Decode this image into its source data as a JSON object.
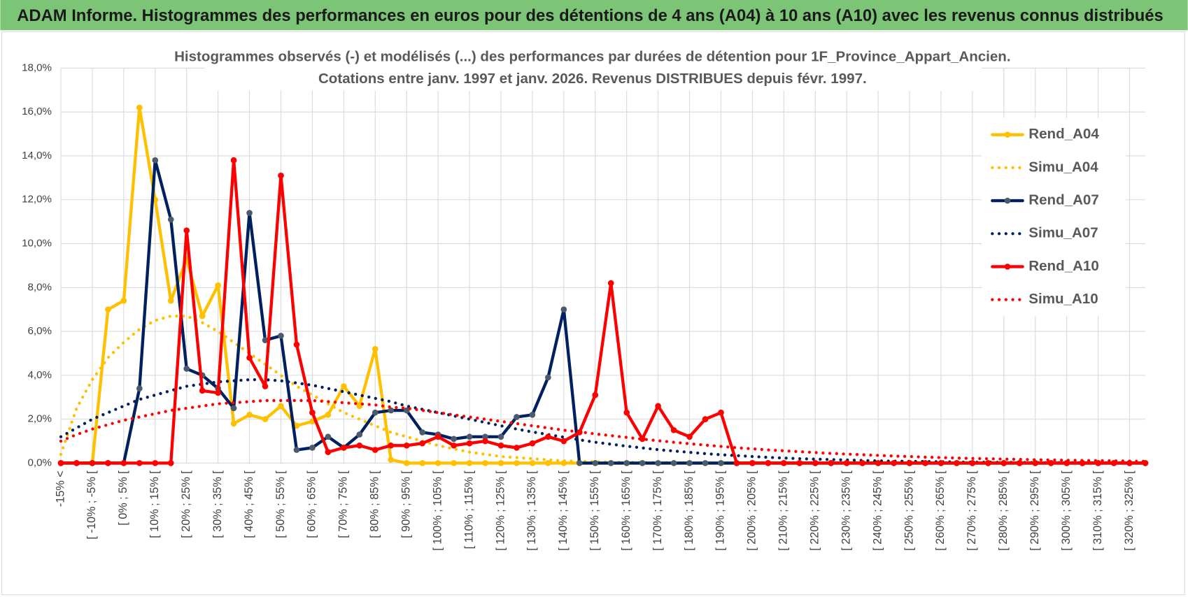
{
  "header": {
    "title": "ADAM Informe. Histogrammes des performances en euros pour des détentions de 4 ans (A04) à 10 ans (A10) avec les revenus connus distribués"
  },
  "chart_data": {
    "type": "line",
    "title": "Histogrammes observés (-) et modélisés (...) des performances par durées de détention pour 1F_Province_Appart_Ancien.",
    "subtitle": "Cotations entre janv. 1997 et janv. 2026. Revenus DISTRIBUES depuis févr. 1997.",
    "categories": [
      "-15% <",
      null,
      "[ -10% ; -5% [",
      null,
      "[ 0% ; 5% [",
      null,
      "[ 10% ; 15% [",
      null,
      "[ 20% ; 25% [",
      null,
      "[ 30% ; 35% [",
      null,
      "[ 40% ; 45% [",
      null,
      "[ 50% ; 55% [",
      null,
      "[ 60% ; 65% [",
      null,
      "[ 70% ; 75% [",
      null,
      "[ 80% ; 85% [",
      null,
      "[ 90% ; 95% [",
      null,
      "[ 100% ; 105% [",
      null,
      "[ 110% ; 115% [",
      null,
      "[ 120% ; 125% [",
      null,
      "[ 130% ; 135% [",
      null,
      "[ 140% ; 145% [",
      null,
      "[ 150% ; 155% [",
      null,
      "[ 160% ; 165% [",
      null,
      "[ 170% ; 175% [",
      null,
      "[ 180% ; 185% [",
      null,
      "[ 190% ; 195% [",
      null,
      "[ 200% ; 205% [",
      null,
      "[ 210% ; 215% [",
      null,
      "[ 220% ; 225% [",
      null,
      "[ 230% ; 235% [",
      null,
      "[ 240% ; 245% [",
      null,
      "[ 250% ; 255% [",
      null,
      "[ 260% ; 265% [",
      null,
      "[ 270% ; 275% [",
      null,
      "[ 280% ; 285% [",
      null,
      "[ 290% ; 295% [",
      null,
      "[ 300% ; 305% [",
      null,
      "[ 310% ; 315% [",
      null,
      "[ 320% ; 325% [",
      null
    ],
    "ylim": [
      0,
      18
    ],
    "yticks": [
      {
        "value": 0,
        "label": "0,0%"
      },
      {
        "value": 2,
        "label": "2,0%"
      },
      {
        "value": 4,
        "label": "4,0%"
      },
      {
        "value": 6,
        "label": "6,0%"
      },
      {
        "value": 8,
        "label": "8,0%"
      },
      {
        "value": 10,
        "label": "10,0%"
      },
      {
        "value": 12,
        "label": "12,0%"
      },
      {
        "value": 14,
        "label": "14,0%"
      },
      {
        "value": 16,
        "label": "16,0%"
      },
      {
        "value": 18,
        "label": "18,0%"
      }
    ],
    "grid": true,
    "legend": "right",
    "series": [
      {
        "name": "Rend_A04",
        "color": "#ffc000",
        "marker_color": "#ffc000",
        "style": "solid",
        "marker": true,
        "values": [
          0,
          0,
          0,
          7.0,
          7.4,
          16.2,
          12.0,
          7.4,
          9.3,
          6.7,
          8.1,
          1.8,
          2.2,
          2.0,
          2.6,
          1.7,
          1.9,
          2.2,
          3.5,
          2.6,
          5.2,
          0.15,
          0,
          0,
          0,
          0,
          0,
          0,
          0,
          0,
          0,
          0,
          0,
          0,
          0,
          0,
          0,
          0,
          0,
          0,
          0,
          0,
          0,
          0,
          0,
          0,
          0,
          0,
          0,
          0,
          0,
          0,
          0,
          0,
          0,
          0,
          0,
          0,
          0,
          0,
          0,
          0,
          0,
          0,
          0,
          0,
          0,
          0,
          0,
          0
        ]
      },
      {
        "name": "Simu_A04",
        "color": "#ffc000",
        "style": "dotted",
        "marker": false,
        "values": [
          0.4,
          2.5,
          3.8,
          4.8,
          5.5,
          6.1,
          6.5,
          6.7,
          6.7,
          6.4,
          6.0,
          5.5,
          5.0,
          4.5,
          4.0,
          3.5,
          3.1,
          2.7,
          2.3,
          2.0,
          1.7,
          1.4,
          1.2,
          1.0,
          0.8,
          0.65,
          0.5,
          0.4,
          0.3,
          0.25,
          0.2,
          0.15,
          0.1,
          0.08,
          0.06,
          0.05,
          0.04,
          0.03,
          0.02,
          0.02,
          0.01,
          0,
          0,
          0,
          0,
          0,
          0,
          0,
          0,
          0,
          0,
          0,
          0,
          0,
          0,
          0,
          0,
          0,
          0,
          0,
          0,
          0,
          0,
          0,
          0,
          0,
          0,
          0,
          0,
          0
        ]
      },
      {
        "name": "Rend_A07",
        "color": "#002060",
        "marker_color": "#4b5a6c",
        "style": "solid",
        "marker": true,
        "values": [
          0,
          0,
          0,
          0,
          0,
          3.4,
          13.8,
          11.1,
          4.3,
          4.0,
          3.4,
          2.5,
          11.4,
          5.6,
          5.8,
          0.6,
          0.7,
          1.2,
          0.7,
          1.3,
          2.3,
          2.4,
          2.4,
          1.4,
          1.3,
          1.1,
          1.2,
          1.2,
          1.2,
          2.1,
          2.2,
          3.9,
          7.0,
          0,
          0,
          0,
          0,
          0,
          0,
          0,
          0,
          0,
          0,
          0,
          0,
          0,
          0,
          0,
          0,
          0,
          0,
          0,
          0,
          0,
          0,
          0,
          0,
          0,
          0,
          0,
          0,
          0,
          0,
          0,
          0,
          0,
          0,
          0,
          0,
          0
        ]
      },
      {
        "name": "Simu_A07",
        "color": "#002060",
        "style": "dotted",
        "marker": false,
        "values": [
          1.2,
          1.6,
          2.0,
          2.3,
          2.6,
          2.9,
          3.1,
          3.3,
          3.5,
          3.6,
          3.7,
          3.75,
          3.8,
          3.8,
          3.75,
          3.65,
          3.55,
          3.4,
          3.25,
          3.1,
          2.95,
          2.8,
          2.6,
          2.45,
          2.3,
          2.15,
          2.0,
          1.85,
          1.7,
          1.55,
          1.42,
          1.3,
          1.18,
          1.06,
          0.95,
          0.86,
          0.77,
          0.69,
          0.61,
          0.55,
          0.49,
          0.43,
          0.38,
          0.34,
          0.3,
          0.26,
          0.23,
          0.2,
          0.18,
          0.16,
          0.14,
          0.12,
          0.1,
          0.09,
          0.08,
          0.07,
          0.06,
          0.05,
          0.04,
          0.04,
          0.03,
          0.03,
          0.02,
          0.02,
          0.02,
          0.01,
          0.01,
          0.01,
          0.01,
          0.01
        ]
      },
      {
        "name": "Rend_A10",
        "color": "#ff0000",
        "marker_color": "#ff0000",
        "style": "solid",
        "marker": true,
        "values": [
          0,
          0,
          0,
          0,
          0,
          0,
          0,
          0,
          10.6,
          3.3,
          3.2,
          13.8,
          4.8,
          3.5,
          13.1,
          5.4,
          2.3,
          0.5,
          0.7,
          0.8,
          0.6,
          0.8,
          0.8,
          0.9,
          1.2,
          0.8,
          0.9,
          1.0,
          0.8,
          0.7,
          0.9,
          1.2,
          1.0,
          1.4,
          3.1,
          8.2,
          2.3,
          1.1,
          2.6,
          1.5,
          1.2,
          2.0,
          2.3,
          0,
          0,
          0,
          0,
          0,
          0,
          0,
          0,
          0,
          0,
          0,
          0,
          0,
          0,
          0,
          0,
          0,
          0,
          0,
          0,
          0,
          0,
          0,
          0,
          0,
          0,
          0
        ]
      },
      {
        "name": "Simu_A10",
        "color": "#ff0000",
        "style": "dotted",
        "marker": false,
        "values": [
          1.0,
          1.3,
          1.55,
          1.75,
          1.95,
          2.1,
          2.25,
          2.4,
          2.5,
          2.6,
          2.7,
          2.75,
          2.8,
          2.85,
          2.85,
          2.85,
          2.85,
          2.8,
          2.75,
          2.7,
          2.65,
          2.55,
          2.5,
          2.4,
          2.3,
          2.2,
          2.1,
          2.0,
          1.9,
          1.8,
          1.7,
          1.6,
          1.5,
          1.42,
          1.33,
          1.25,
          1.17,
          1.09,
          1.02,
          0.95,
          0.88,
          0.82,
          0.76,
          0.7,
          0.65,
          0.6,
          0.56,
          0.52,
          0.48,
          0.44,
          0.41,
          0.38,
          0.35,
          0.32,
          0.3,
          0.27,
          0.25,
          0.23,
          0.21,
          0.2,
          0.18,
          0.17,
          0.15,
          0.14,
          0.13,
          0.12,
          0.11,
          0.1,
          0.09,
          0.08
        ]
      }
    ]
  }
}
